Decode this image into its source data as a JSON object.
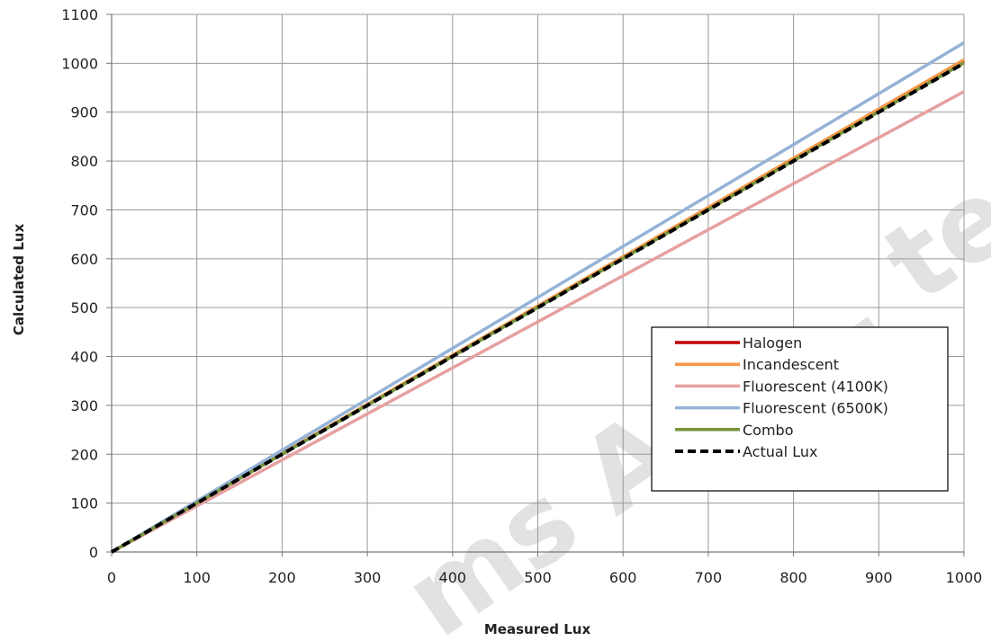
{
  "chart_data": {
    "type": "line",
    "title": "",
    "xlabel": "Measured Lux",
    "ylabel": "Calculated Lux",
    "xlim": [
      0,
      1000
    ],
    "ylim": [
      0,
      1100
    ],
    "x_ticks": [
      "0",
      "100",
      "200",
      "300",
      "400",
      "500",
      "600",
      "700",
      "800",
      "900",
      "1000"
    ],
    "y_ticks": [
      "0",
      "100",
      "200",
      "300",
      "400",
      "500",
      "600",
      "700",
      "800",
      "900",
      "1000",
      "1100"
    ],
    "grid": true,
    "legend_position": "lower-right",
    "x": [
      0,
      1000
    ],
    "series": [
      {
        "name": "Halogen",
        "color": "#c00000",
        "dash": "solid",
        "values": [
          0,
          1005
        ]
      },
      {
        "name": "Incandescent",
        "color": "#f79646",
        "dash": "solid",
        "values": [
          0,
          1007
        ]
      },
      {
        "name": "Fluorescent (4100K)",
        "color": "#e6a0a0",
        "dash": "solid",
        "values": [
          0,
          942
        ]
      },
      {
        "name": "Fluorescent (6500K)",
        "color": "#95b3d7",
        "dash": "solid",
        "values": [
          0,
          1042
        ]
      },
      {
        "name": "Combo",
        "color": "#77933c",
        "dash": "solid",
        "values": [
          0,
          1001
        ]
      },
      {
        "name": "Actual Lux",
        "color": "#000000",
        "dash": "dashed",
        "values": [
          0,
          1000
        ]
      }
    ]
  },
  "watermark": "ms AG ... tent still v"
}
